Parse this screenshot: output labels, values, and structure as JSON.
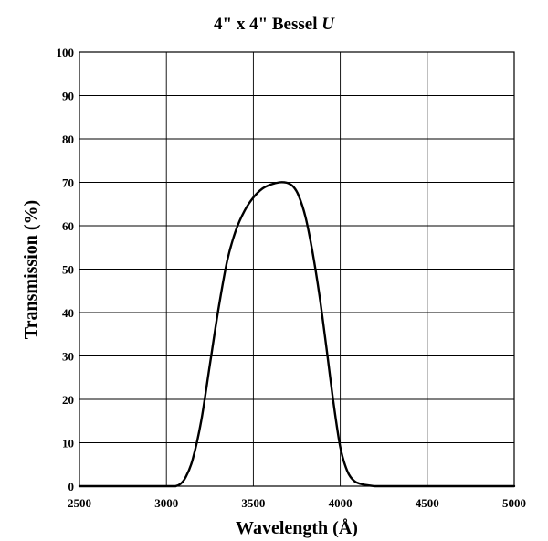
{
  "chart_data": {
    "type": "line",
    "title": "4\" x 4\" Bessel ",
    "title_italic": "U",
    "xlabel": "Wavelength  (Å)",
    "ylabel": "Transmission  (%)",
    "xlim": [
      2500,
      5000
    ],
    "ylim": [
      0,
      100
    ],
    "xticks": [
      "2500",
      "3000",
      "3500",
      "4000",
      "4500",
      "5000"
    ],
    "yticks": [
      "0",
      "10",
      "20",
      "30",
      "40",
      "50",
      "60",
      "70",
      "80",
      "90",
      "100"
    ],
    "grid": true,
    "legend": "none",
    "series": [
      {
        "color": "#000000",
        "x": [
          2500,
          3000,
          3050,
          3080,
          3110,
          3150,
          3200,
          3250,
          3300,
          3350,
          3400,
          3450,
          3500,
          3550,
          3600,
          3650,
          3680,
          3700,
          3730,
          3760,
          3800,
          3840,
          3880,
          3920,
          3960,
          4000,
          4040,
          4080,
          4120,
          4160,
          4200,
          4250,
          4300,
          5000
        ],
        "y": [
          0,
          0,
          0,
          0.5,
          2,
          6,
          15,
          28,
          41,
          52,
          59,
          63.5,
          66.5,
          68.5,
          69.5,
          70,
          70,
          69.8,
          69,
          67,
          62,
          54,
          44,
          32,
          19.5,
          9,
          3.5,
          1.2,
          0.5,
          0.2,
          0,
          0,
          0,
          0
        ]
      }
    ]
  }
}
